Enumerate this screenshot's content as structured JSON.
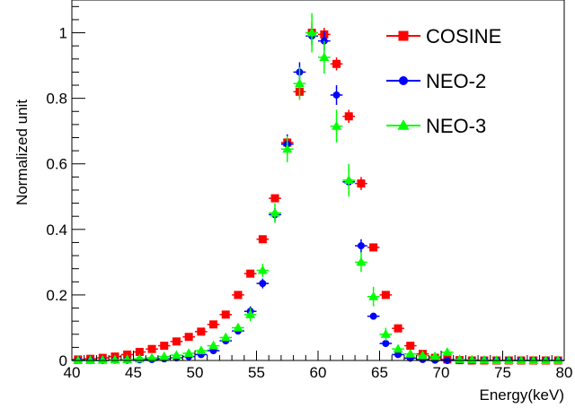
{
  "chart_data": {
    "type": "scatter",
    "title": "",
    "xlabel": "Energy(keV)",
    "ylabel": "Normalized unit",
    "xlim": [
      40,
      80
    ],
    "ylim": [
      0,
      1.1
    ],
    "xticks": [
      "40",
      "45",
      "50",
      "55",
      "60",
      "65",
      "70",
      "75",
      "80"
    ],
    "yticks": [
      "0",
      "0.2",
      "0.4",
      "0.6",
      "0.8",
      "1"
    ],
    "grid": false,
    "legend_position": "top-right",
    "series": [
      {
        "name": "COSINE",
        "color": "#ff0000",
        "marker": "square",
        "x": [
          40.5,
          41.5,
          42.5,
          43.5,
          44.5,
          45.5,
          46.5,
          47.5,
          48.5,
          49.5,
          50.5,
          51.5,
          52.5,
          53.5,
          54.5,
          55.5,
          56.5,
          57.5,
          58.5,
          59.5,
          60.5,
          61.5,
          62.5,
          63.5,
          64.5,
          65.5,
          66.5,
          67.5,
          68.5,
          69.5,
          70.5,
          71.5,
          72.5,
          73.5,
          74.5,
          75.5,
          76.5,
          77.5,
          78.5,
          79.5
        ],
        "y": [
          0.003,
          0.005,
          0.008,
          0.012,
          0.018,
          0.026,
          0.035,
          0.045,
          0.058,
          0.072,
          0.088,
          0.11,
          0.14,
          0.2,
          0.265,
          0.37,
          0.495,
          0.665,
          0.82,
          1.0,
          0.995,
          0.905,
          0.745,
          0.54,
          0.345,
          0.2,
          0.098,
          0.045,
          0.02,
          0.008,
          0.003,
          0.001,
          0.0,
          0.0,
          0.0,
          0.0,
          0.0,
          0.0,
          0.0,
          0.0
        ],
        "err": [
          0,
          0,
          0,
          0,
          0,
          0,
          0,
          0,
          0,
          0,
          0,
          0,
          0,
          0,
          0,
          0,
          0,
          0.02,
          0.02,
          0.03,
          0.02,
          0.02,
          0.02,
          0.02,
          0,
          0,
          0,
          0,
          0,
          0,
          0,
          0,
          0,
          0,
          0,
          0,
          0,
          0,
          0,
          0
        ]
      },
      {
        "name": "NEO-2",
        "color": "#0000ff",
        "marker": "circle",
        "x": [
          40.5,
          41.5,
          42.5,
          43.5,
          44.5,
          45.5,
          46.5,
          47.5,
          48.5,
          49.5,
          50.5,
          51.5,
          52.5,
          53.5,
          54.5,
          55.5,
          56.5,
          57.5,
          58.5,
          59.5,
          60.5,
          61.5,
          62.5,
          63.5,
          64.5,
          65.5,
          66.5,
          67.5,
          68.5,
          69.5,
          70.5,
          71.5,
          72.5,
          73.5,
          74.5,
          75.5,
          76.5,
          77.5,
          78.5,
          79.5
        ],
        "y": [
          0.0,
          0.0,
          0.0,
          0.001,
          0.001,
          0.002,
          0.003,
          0.005,
          0.008,
          0.012,
          0.018,
          0.03,
          0.06,
          0.09,
          0.15,
          0.235,
          0.445,
          0.66,
          0.88,
          0.99,
          0.975,
          0.81,
          0.545,
          0.35,
          0.135,
          0.052,
          0.018,
          0.007,
          0.003,
          0.001,
          0.0,
          0.0,
          0.0,
          0.0,
          0.0,
          0.0,
          0.0,
          0.0,
          0.0,
          0.0
        ],
        "err": [
          0,
          0,
          0,
          0,
          0,
          0,
          0,
          0,
          0,
          0,
          0,
          0,
          0.01,
          0.01,
          0.015,
          0.015,
          0.02,
          0.03,
          0.03,
          0.03,
          0.03,
          0.03,
          0.03,
          0.02,
          0.01,
          0.01,
          0,
          0,
          0,
          0,
          0,
          0,
          0,
          0,
          0,
          0,
          0,
          0,
          0,
          0
        ]
      },
      {
        "name": "NEO-3",
        "color": "#00ff00",
        "marker": "triangle",
        "x": [
          40.5,
          41.5,
          42.5,
          43.5,
          44.5,
          45.5,
          46.5,
          47.5,
          48.5,
          49.5,
          50.5,
          51.5,
          52.5,
          53.5,
          54.5,
          55.5,
          56.5,
          57.5,
          58.5,
          59.5,
          60.5,
          61.5,
          62.5,
          63.5,
          64.5,
          65.5,
          66.5,
          67.5,
          68.5,
          69.5,
          70.5,
          71.5,
          72.5,
          73.5,
          74.5,
          75.5,
          76.5,
          77.5,
          78.5,
          79.5
        ],
        "y": [
          0.0,
          0.0,
          0.001,
          0.002,
          0.003,
          0.005,
          0.008,
          0.012,
          0.016,
          0.022,
          0.03,
          0.045,
          0.07,
          0.1,
          0.14,
          0.275,
          0.45,
          0.645,
          0.845,
          1.0,
          0.925,
          0.715,
          0.55,
          0.3,
          0.195,
          0.08,
          0.035,
          0.02,
          0.015,
          0.012,
          0.025,
          0.003,
          0.002,
          0.001,
          0.0,
          0.0,
          0.0,
          0.0,
          0.0,
          0.0
        ],
        "err": [
          0,
          0,
          0,
          0,
          0,
          0,
          0,
          0,
          0,
          0,
          0,
          0,
          0.01,
          0.01,
          0.02,
          0.02,
          0.03,
          0.04,
          0.05,
          0.06,
          0.05,
          0.05,
          0.05,
          0.03,
          0.03,
          0.02,
          0.01,
          0,
          0,
          0,
          0,
          0,
          0,
          0,
          0,
          0,
          0,
          0,
          0,
          0
        ]
      }
    ]
  }
}
